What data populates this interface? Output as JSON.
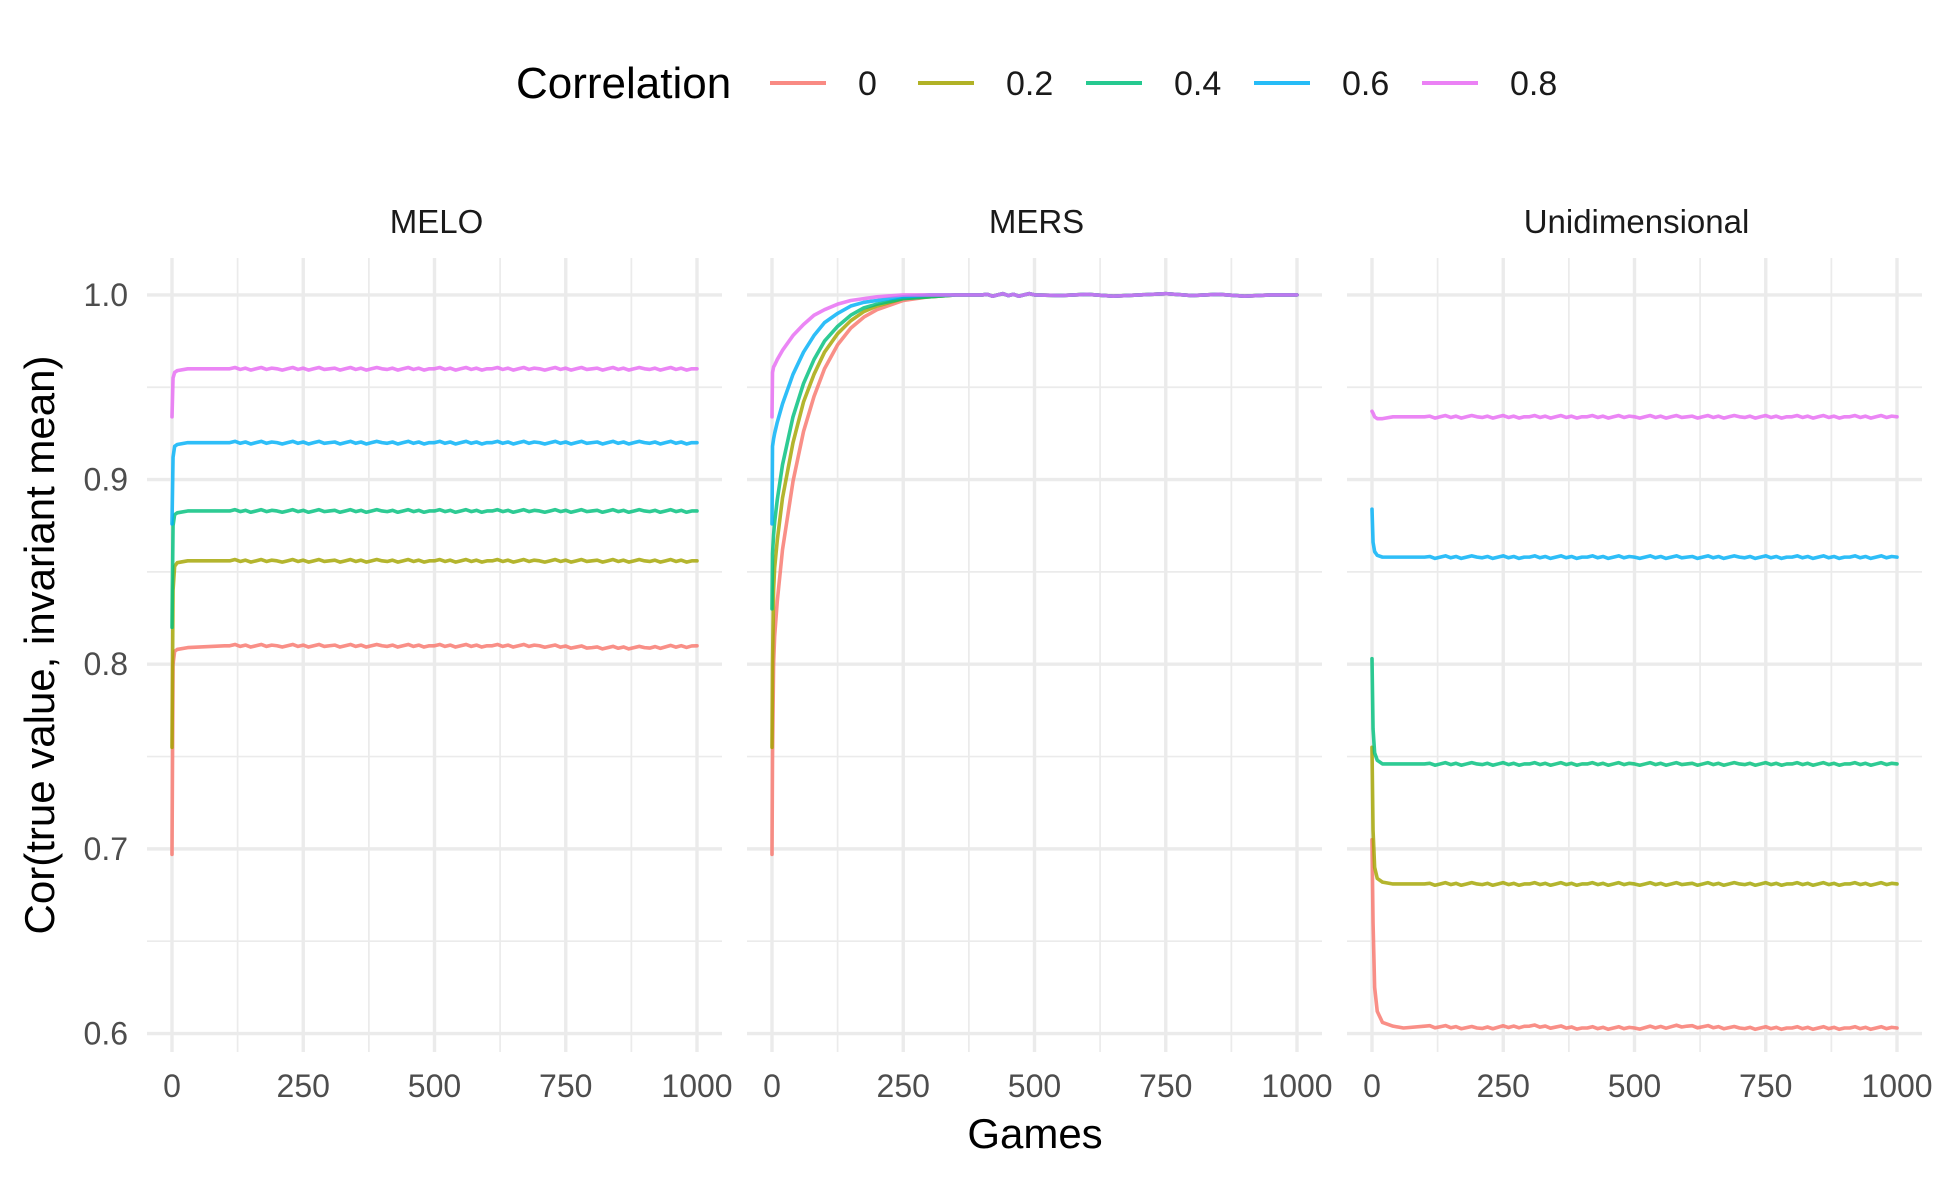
{
  "chart_data": {
    "type": "line",
    "xlabel": "Games",
    "ylabel": "Cor(true value, invariant mean)",
    "xlim": [
      0,
      1000
    ],
    "ylim": [
      0.59,
      1.02
    ],
    "x_ticks": [
      0,
      250,
      500,
      750,
      1000
    ],
    "x_tick_labels": [
      "0",
      "250",
      "500",
      "750",
      "1000"
    ],
    "y_ticks": [
      0.6,
      0.7,
      0.8,
      0.9,
      1.0
    ],
    "y_tick_labels": [
      "0.6",
      "0.7",
      "0.8",
      "0.9",
      "1.0"
    ],
    "grid": true,
    "legend": {
      "title": "Correlation",
      "position": "top",
      "entries": [
        {
          "label": "0",
          "color": "#F8766D"
        },
        {
          "label": "0.2",
          "color": "#A3A500"
        },
        {
          "label": "0.4",
          "color": "#00BF7D"
        },
        {
          "label": "0.6",
          "color": "#00B0F6"
        },
        {
          "label": "0.8",
          "color": "#E76BF3"
        }
      ]
    },
    "facets": [
      {
        "title": "MELO",
        "series": [
          {
            "name": "0",
            "start": 0.697,
            "x": [
              0,
              2,
              5,
              10,
              30,
              100,
              200,
              300,
              400,
              500,
              600,
              700,
              800,
              900,
              1000
            ],
            "y": [
              0.697,
              0.8,
              0.807,
              0.808,
              0.809,
              0.81,
              0.81,
              0.81,
              0.81,
              0.81,
              0.81,
              0.81,
              0.809,
              0.809,
              0.81
            ]
          },
          {
            "name": "0.2",
            "start": 0.755,
            "x": [
              0,
              2,
              5,
              10,
              30,
              100,
              200,
              300,
              400,
              500,
              600,
              700,
              800,
              900,
              1000
            ],
            "y": [
              0.755,
              0.84,
              0.853,
              0.855,
              0.856,
              0.856,
              0.856,
              0.856,
              0.856,
              0.856,
              0.856,
              0.856,
              0.856,
              0.856,
              0.856
            ]
          },
          {
            "name": "0.4",
            "start": 0.82,
            "x": [
              0,
              2,
              5,
              10,
              30,
              100,
              200,
              300,
              400,
              500,
              600,
              700,
              800,
              900,
              1000
            ],
            "y": [
              0.82,
              0.875,
              0.881,
              0.882,
              0.883,
              0.883,
              0.883,
              0.883,
              0.883,
              0.883,
              0.883,
              0.883,
              0.883,
              0.883,
              0.883
            ]
          },
          {
            "name": "0.6",
            "start": 0.876,
            "x": [
              0,
              2,
              5,
              10,
              30,
              100,
              200,
              300,
              400,
              500,
              600,
              700,
              800,
              900,
              1000
            ],
            "y": [
              0.876,
              0.912,
              0.918,
              0.919,
              0.92,
              0.92,
              0.92,
              0.92,
              0.92,
              0.92,
              0.92,
              0.92,
              0.92,
              0.92,
              0.92
            ]
          },
          {
            "name": "0.8",
            "start": 0.934,
            "x": [
              0,
              2,
              5,
              10,
              30,
              100,
              200,
              300,
              400,
              500,
              600,
              700,
              800,
              900,
              1000
            ],
            "y": [
              0.934,
              0.955,
              0.958,
              0.959,
              0.96,
              0.96,
              0.96,
              0.96,
              0.96,
              0.96,
              0.96,
              0.96,
              0.96,
              0.96,
              0.96
            ]
          }
        ]
      },
      {
        "title": "MERS",
        "series": [
          {
            "name": "0",
            "x": [
              0,
              1,
              3,
              5,
              10,
              20,
              40,
              60,
              80,
              100,
              125,
              150,
              175,
              200,
              250,
              300,
              350,
              400,
              500,
              1000
            ],
            "y": [
              0.697,
              0.75,
              0.8,
              0.815,
              0.834,
              0.862,
              0.899,
              0.926,
              0.945,
              0.96,
              0.973,
              0.982,
              0.988,
              0.992,
              0.997,
              0.999,
              1.0,
              1.0,
              1.0,
              1.0
            ]
          },
          {
            "name": "0.2",
            "x": [
              0,
              1,
              3,
              5,
              10,
              20,
              40,
              60,
              80,
              100,
              125,
              150,
              175,
              200,
              250,
              300,
              350,
              400,
              500,
              1000
            ],
            "y": [
              0.755,
              0.8,
              0.84,
              0.852,
              0.867,
              0.89,
              0.92,
              0.942,
              0.957,
              0.969,
              0.979,
              0.986,
              0.991,
              0.994,
              0.998,
              0.999,
              1.0,
              1.0,
              1.0,
              1.0
            ]
          },
          {
            "name": "0.4",
            "x": [
              0,
              1,
              3,
              5,
              10,
              20,
              40,
              60,
              80,
              100,
              125,
              150,
              175,
              200,
              250,
              300,
              350,
              400,
              500,
              1000
            ],
            "y": [
              0.83,
              0.86,
              0.87,
              0.877,
              0.889,
              0.908,
              0.934,
              0.952,
              0.965,
              0.975,
              0.983,
              0.989,
              0.993,
              0.995,
              0.998,
              0.999,
              1.0,
              1.0,
              1.0,
              1.0
            ]
          },
          {
            "name": "0.6",
            "x": [
              0,
              1,
              3,
              5,
              10,
              20,
              40,
              60,
              80,
              100,
              125,
              150,
              175,
              200,
              250,
              300,
              350,
              400,
              500,
              1000
            ],
            "y": [
              0.876,
              0.918,
              0.922,
              0.925,
              0.931,
              0.941,
              0.957,
              0.969,
              0.978,
              0.985,
              0.99,
              0.994,
              0.996,
              0.997,
              0.999,
              1.0,
              1.0,
              1.0,
              1.0,
              1.0
            ]
          },
          {
            "name": "0.8",
            "x": [
              0,
              1,
              3,
              5,
              10,
              20,
              40,
              60,
              80,
              100,
              125,
              150,
              175,
              200,
              250,
              300,
              350,
              400,
              500,
              1000
            ],
            "y": [
              0.934,
              0.958,
              0.961,
              0.962,
              0.965,
              0.97,
              0.978,
              0.984,
              0.989,
              0.992,
              0.995,
              0.997,
              0.998,
              0.999,
              1.0,
              1.0,
              1.0,
              1.0,
              1.0,
              1.0
            ]
          }
        ]
      },
      {
        "title": "Unidimensional",
        "series": [
          {
            "name": "0",
            "x": [
              0,
              2,
              5,
              10,
              20,
              40,
              60,
              100,
              200,
              300,
              400,
              500,
              600,
              700,
              800,
              900,
              1000
            ],
            "y": [
              0.705,
              0.66,
              0.625,
              0.612,
              0.606,
              0.604,
              0.603,
              0.604,
              0.603,
              0.604,
              0.603,
              0.603,
              0.604,
              0.603,
              0.603,
              0.603,
              0.603
            ]
          },
          {
            "name": "0.2",
            "x": [
              0,
              2,
              5,
              10,
              20,
              40,
              60,
              100,
              200,
              300,
              400,
              500,
              600,
              700,
              800,
              900,
              1000
            ],
            "y": [
              0.755,
              0.71,
              0.69,
              0.684,
              0.682,
              0.681,
              0.681,
              0.681,
              0.681,
              0.681,
              0.681,
              0.681,
              0.681,
              0.681,
              0.681,
              0.681,
              0.681
            ]
          },
          {
            "name": "0.4",
            "x": [
              0,
              2,
              5,
              10,
              20,
              40,
              60,
              100,
              200,
              300,
              400,
              500,
              600,
              700,
              800,
              900,
              1000
            ],
            "y": [
              0.803,
              0.765,
              0.752,
              0.748,
              0.746,
              0.746,
              0.746,
              0.746,
              0.746,
              0.746,
              0.746,
              0.746,
              0.746,
              0.746,
              0.746,
              0.746,
              0.746
            ]
          },
          {
            "name": "0.6",
            "x": [
              0,
              2,
              5,
              10,
              20,
              40,
              60,
              100,
              200,
              300,
              400,
              500,
              600,
              700,
              800,
              900,
              1000
            ],
            "y": [
              0.884,
              0.866,
              0.861,
              0.859,
              0.858,
              0.858,
              0.858,
              0.858,
              0.858,
              0.858,
              0.858,
              0.858,
              0.858,
              0.858,
              0.858,
              0.858,
              0.858
            ]
          },
          {
            "name": "0.8",
            "x": [
              0,
              2,
              5,
              10,
              20,
              40,
              60,
              100,
              200,
              300,
              400,
              500,
              600,
              700,
              800,
              900,
              1000
            ],
            "y": [
              0.937,
              0.936,
              0.934,
              0.933,
              0.933,
              0.934,
              0.934,
              0.934,
              0.934,
              0.934,
              0.934,
              0.934,
              0.934,
              0.934,
              0.934,
              0.934,
              0.934
            ]
          }
        ]
      }
    ]
  }
}
